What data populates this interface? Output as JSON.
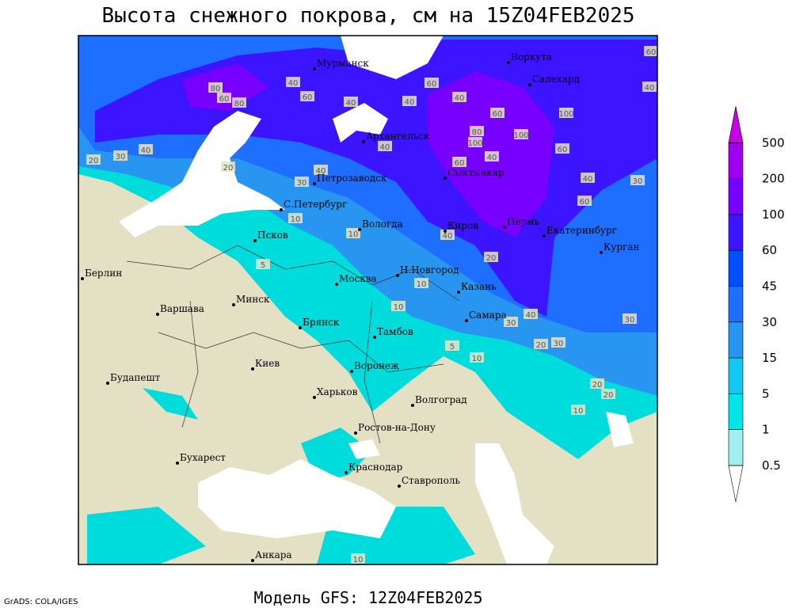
{
  "title": "Высота снежного покрова, см на 15Z04FEB2025",
  "footer": "Модель GFS: 12Z04FEB2025",
  "credit": "GrADS: COLA/IGES",
  "cities": [
    "Мурманск",
    "Воркута",
    "Салехард",
    "Архангельск",
    "Сыктывкар",
    "Петрозаводск",
    "С.Петербург",
    "Вологда",
    "Киров",
    "Пермь",
    "Екатеринбург",
    "Курган",
    "Псков",
    "Н.Новгород",
    "Казань",
    "Москва",
    "Берлин",
    "Минск",
    "Варшава",
    "Брянск",
    "Тамбов",
    "Самара",
    "Киев",
    "Воронеж",
    "Будапешт",
    "Харьков",
    "Волгоград",
    "Ростов-на-Дону",
    "Бухарест",
    "Краснодар",
    "Ставрополь",
    "Анкара"
  ],
  "contour_labels": [
    40,
    60,
    80,
    60,
    80,
    40,
    40,
    60,
    40,
    60,
    100,
    60,
    100,
    80,
    100,
    60,
    40,
    40,
    60,
    30,
    40,
    40,
    30,
    20,
    20,
    30,
    40,
    10,
    10,
    5,
    10,
    10,
    5,
    10,
    30,
    40,
    30,
    20,
    20,
    10,
    40,
    20,
    30,
    20,
    10,
    60,
    40
  ],
  "colorbar": {
    "levels": [
      0.5,
      1,
      5,
      15,
      30,
      45,
      60,
      100,
      200,
      500
    ],
    "colors": [
      "#ffffff",
      "#a0f0f0",
      "#00e6e6",
      "#14c8f0",
      "#2896f0",
      "#1e6eff",
      "#0050ff",
      "#3c14ff",
      "#7800ff",
      "#a000f0",
      "#c800e6"
    ]
  }
}
